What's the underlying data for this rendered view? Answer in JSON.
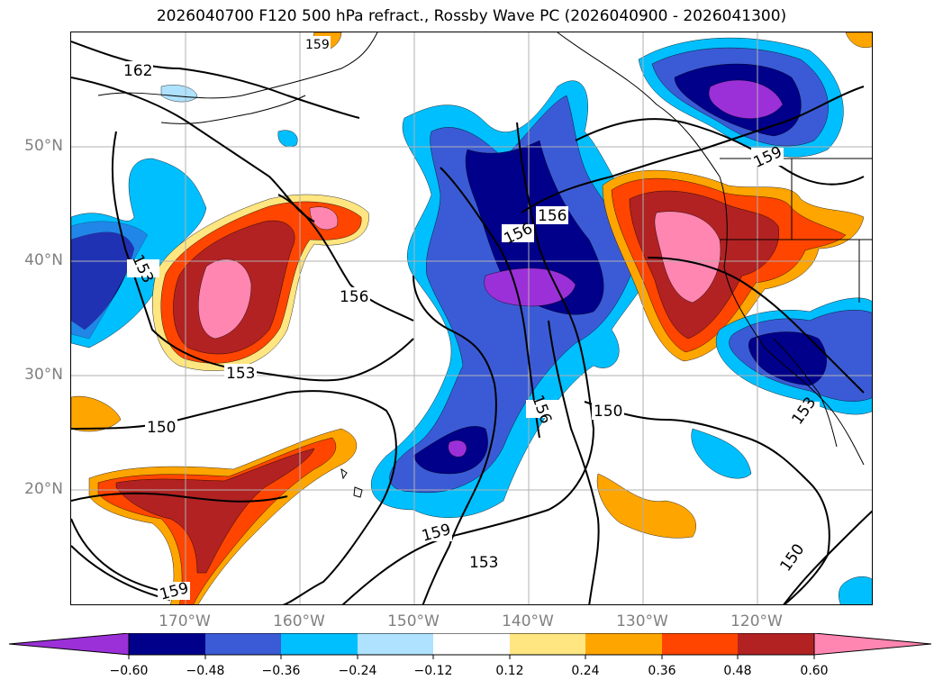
{
  "title": "2026040700 F120 500 hPa refract., Rossby Wave PC (2026040900 - 2026041300)",
  "map": {
    "lat_labels": [
      "50°N",
      "40°N",
      "30°N",
      "20°N"
    ],
    "lon_labels": [
      "170°W",
      "160°W",
      "150°W",
      "140°W",
      "130°W",
      "120°W"
    ],
    "contour_labels": [
      "162",
      "153",
      "156",
      "156",
      "156",
      "153",
      "150",
      "156",
      "150",
      "159",
      "153",
      "159",
      "150",
      "153",
      "159",
      "159"
    ]
  },
  "colorbar": {
    "ticks": [
      "−0.60",
      "−0.48",
      "−0.36",
      "−0.24",
      "−0.12",
      "0.12",
      "0.24",
      "0.36",
      "0.48",
      "0.60"
    ],
    "colors": [
      "#9b30d8",
      "#00008b",
      "#3b5bd6",
      "#00bfff",
      "#aee2ff",
      "#ffffff",
      "#ffe680",
      "#ffa500",
      "#ff4500",
      "#b22222",
      "#ff86b0",
      "#ff86b0"
    ]
  }
}
